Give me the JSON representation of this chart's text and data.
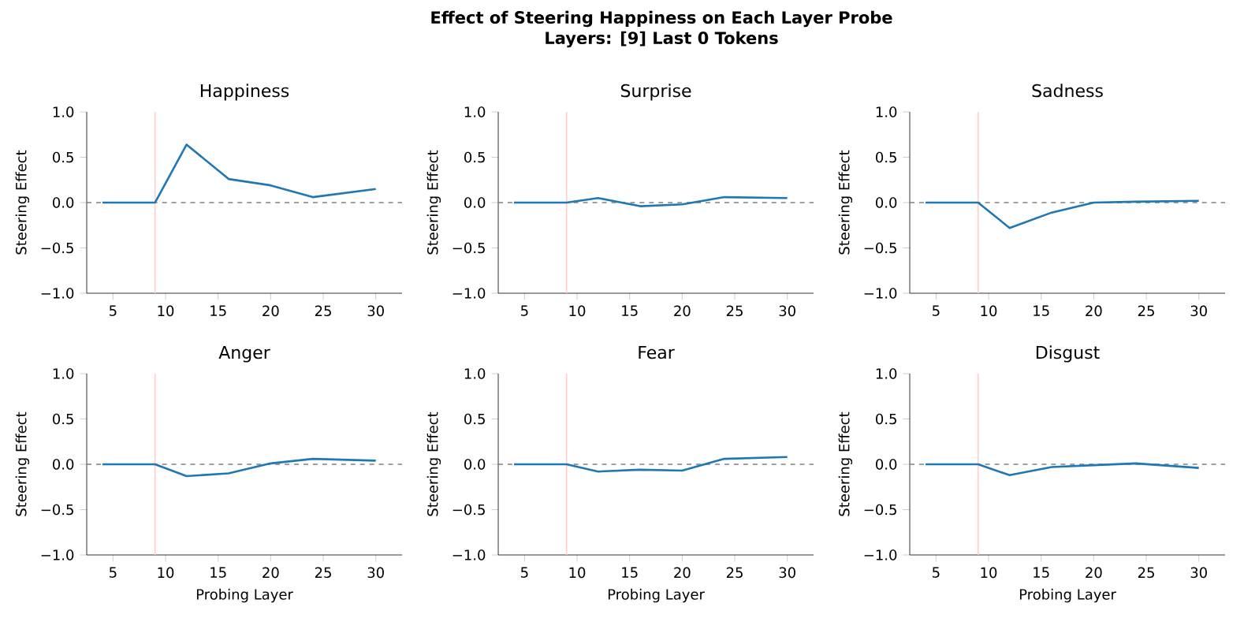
{
  "chart_data": [
    {
      "type": "line",
      "title": "Happiness",
      "ylabel": "Steering Effect",
      "annotations": [
        "Effect of Steering Happiness on Each Layer Probe",
        "Layers: [9]   Last 0 Tokens"
      ],
      "x": [
        4,
        9,
        12,
        16,
        20,
        24,
        30
      ],
      "series": [
        {
          "color": "#1f77b4",
          "values": [
            0,
            0,
            0.64,
            0.26,
            0.19,
            0.06,
            0.15
          ]
        }
      ],
      "xlim": [
        2.5,
        32.5
      ],
      "ylim": [
        -1,
        1
      ],
      "xticks": [
        5,
        10,
        15,
        20,
        25,
        30
      ],
      "yticks": [
        {
          "value": -1,
          "label": "−1.0"
        },
        {
          "value": -0.5,
          "label": "−0.5"
        },
        {
          "value": 0,
          "label": "0.0"
        },
        {
          "value": 0.5,
          "label": "0.5"
        },
        {
          "value": 1,
          "label": "1.0"
        }
      ],
      "ref_lines": [
        {
          "axis": "x",
          "value": 9,
          "color": "#ffcccc",
          "line_style": "solid"
        },
        {
          "axis": "y",
          "value": 0,
          "color": "#808080",
          "line_style": "dashed"
        }
      ],
      "line_style": "solid",
      "grid": false
    },
    {
      "type": "line",
      "title": "Surprise",
      "ylabel": "Steering Effect",
      "x": [
        4,
        9,
        12,
        16,
        20,
        24,
        30
      ],
      "series": [
        {
          "color": "#1f77b4",
          "values": [
            0,
            0,
            0.05,
            -0.04,
            -0.02,
            0.06,
            0.05
          ]
        }
      ],
      "xlim": [
        2.5,
        32.5
      ],
      "ylim": [
        -1,
        1
      ],
      "xticks": [
        5,
        10,
        15,
        20,
        25,
        30
      ],
      "yticks": [
        {
          "value": -1,
          "label": "−1.0"
        },
        {
          "value": -0.5,
          "label": "−0.5"
        },
        {
          "value": 0,
          "label": "0.0"
        },
        {
          "value": 0.5,
          "label": "0.5"
        },
        {
          "value": 1,
          "label": "1.0"
        }
      ],
      "ref_lines": [
        {
          "axis": "x",
          "value": 9,
          "color": "#ffcccc",
          "line_style": "solid"
        },
        {
          "axis": "y",
          "value": 0,
          "color": "#808080",
          "line_style": "dashed"
        }
      ],
      "line_style": "solid",
      "grid": false
    },
    {
      "type": "line",
      "title": "Sadness",
      "ylabel": "Steering Effect",
      "x": [
        4,
        9,
        12,
        16,
        20,
        24,
        30
      ],
      "series": [
        {
          "color": "#1f77b4",
          "values": [
            0,
            0,
            -0.28,
            -0.11,
            0,
            0.01,
            0.02
          ]
        }
      ],
      "xlim": [
        2.5,
        32.5
      ],
      "ylim": [
        -1,
        1
      ],
      "xticks": [
        5,
        10,
        15,
        20,
        25,
        30
      ],
      "yticks": [
        {
          "value": -1,
          "label": "−1.0"
        },
        {
          "value": -0.5,
          "label": "−0.5"
        },
        {
          "value": 0,
          "label": "0.0"
        },
        {
          "value": 0.5,
          "label": "0.5"
        },
        {
          "value": 1,
          "label": "1.0"
        }
      ],
      "ref_lines": [
        {
          "axis": "x",
          "value": 9,
          "color": "#ffcccc",
          "line_style": "solid"
        },
        {
          "axis": "y",
          "value": 0,
          "color": "#808080",
          "line_style": "dashed"
        }
      ],
      "line_style": "solid",
      "grid": false
    },
    {
      "type": "line",
      "title": "Anger",
      "xlabel": "Probing Layer",
      "ylabel": "Steering Effect",
      "x": [
        4,
        9,
        12,
        16,
        20,
        24,
        30
      ],
      "series": [
        {
          "color": "#1f77b4",
          "values": [
            0,
            0,
            -0.13,
            -0.1,
            0.01,
            0.06,
            0.04
          ]
        }
      ],
      "xlim": [
        2.5,
        32.5
      ],
      "ylim": [
        -1,
        1
      ],
      "xticks": [
        5,
        10,
        15,
        20,
        25,
        30
      ],
      "yticks": [
        {
          "value": -1,
          "label": "−1.0"
        },
        {
          "value": -0.5,
          "label": "−0.5"
        },
        {
          "value": 0,
          "label": "0.0"
        },
        {
          "value": 0.5,
          "label": "0.5"
        },
        {
          "value": 1,
          "label": "1.0"
        }
      ],
      "ref_lines": [
        {
          "axis": "x",
          "value": 9,
          "color": "#ffcccc",
          "line_style": "solid"
        },
        {
          "axis": "y",
          "value": 0,
          "color": "#808080",
          "line_style": "dashed"
        }
      ],
      "line_style": "solid",
      "grid": false
    },
    {
      "type": "line",
      "title": "Fear",
      "xlabel": "Probing Layer",
      "ylabel": "Steering Effect",
      "x": [
        4,
        9,
        12,
        16,
        20,
        24,
        30
      ],
      "series": [
        {
          "color": "#1f77b4",
          "values": [
            0,
            0,
            -0.08,
            -0.06,
            -0.07,
            0.06,
            0.08
          ]
        }
      ],
      "xlim": [
        2.5,
        32.5
      ],
      "ylim": [
        -1,
        1
      ],
      "xticks": [
        5,
        10,
        15,
        20,
        25,
        30
      ],
      "yticks": [
        {
          "value": -1,
          "label": "−1.0"
        },
        {
          "value": -0.5,
          "label": "−0.5"
        },
        {
          "value": 0,
          "label": "0.0"
        },
        {
          "value": 0.5,
          "label": "0.5"
        },
        {
          "value": 1,
          "label": "1.0"
        }
      ],
      "ref_lines": [
        {
          "axis": "x",
          "value": 9,
          "color": "#ffcccc",
          "line_style": "solid"
        },
        {
          "axis": "y",
          "value": 0,
          "color": "#808080",
          "line_style": "dashed"
        }
      ],
      "line_style": "solid",
      "grid": false
    },
    {
      "type": "line",
      "title": "Disgust",
      "xlabel": "Probing Layer",
      "ylabel": "Steering Effect",
      "x": [
        4,
        9,
        12,
        16,
        20,
        24,
        30
      ],
      "series": [
        {
          "color": "#1f77b4",
          "values": [
            0,
            0,
            -0.12,
            -0.03,
            -0.01,
            0.01,
            -0.04
          ]
        }
      ],
      "xlim": [
        2.5,
        32.5
      ],
      "ylim": [
        -1,
        1
      ],
      "xticks": [
        5,
        10,
        15,
        20,
        25,
        30
      ],
      "yticks": [
        {
          "value": -1,
          "label": "−1.0"
        },
        {
          "value": -0.5,
          "label": "−0.5"
        },
        {
          "value": 0,
          "label": "0.0"
        },
        {
          "value": 0.5,
          "label": "0.5"
        },
        {
          "value": 1,
          "label": "1.0"
        }
      ],
      "ref_lines": [
        {
          "axis": "x",
          "value": 9,
          "color": "#ffcccc",
          "line_style": "solid"
        },
        {
          "axis": "y",
          "value": 0,
          "color": "#808080",
          "line_style": "dashed"
        }
      ],
      "line_style": "solid",
      "grid": false
    }
  ]
}
